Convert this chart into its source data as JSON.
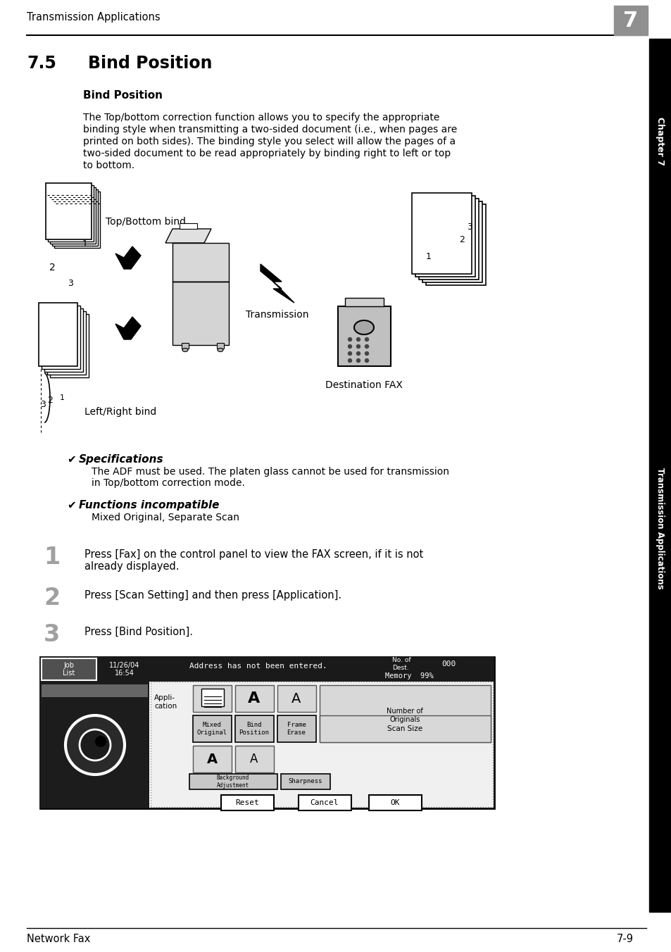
{
  "page_bg": "#ffffff",
  "header_text": "Transmission Applications",
  "header_num": "7",
  "footer_left": "Network Fax",
  "footer_right": "7-9",
  "section_num": "7.5",
  "section_title": "Bind Position",
  "subsection_title": "Bind Position",
  "body_lines": [
    "The Top/bottom correction function allows you to specify the appropriate",
    "binding style when transmitting a two-sided document (i.e., when pages are",
    "printed on both sides). The binding style you select will allow the pages of a",
    "two-sided document to be read appropriately by binding right to left or top",
    "to bottom."
  ],
  "label_top_bottom": "Top/Bottom bind",
  "label_left_right": "Left/Right bind",
  "label_transmission": "Transmission",
  "label_dest_fax": "Destination FAX",
  "spec_title": "Specifications",
  "spec_lines": [
    "The ADF must be used. The platen glass cannot be used for transmission",
    "in Top/bottom correction mode."
  ],
  "func_title": "Functions incompatible",
  "func_text": "Mixed Original, Separate Scan",
  "step1_num": "1",
  "step1_lines": [
    "Press [Fax] on the control panel to view the FAX screen, if it is not",
    "already displayed."
  ],
  "step2_num": "2",
  "step2_text": "Press [Scan Setting] and then press [Application].",
  "step3_num": "3",
  "step3_text": "Press [Bind Position].",
  "sidebar_text": "Transmission Applications",
  "chapter_text": "Chapter 7"
}
